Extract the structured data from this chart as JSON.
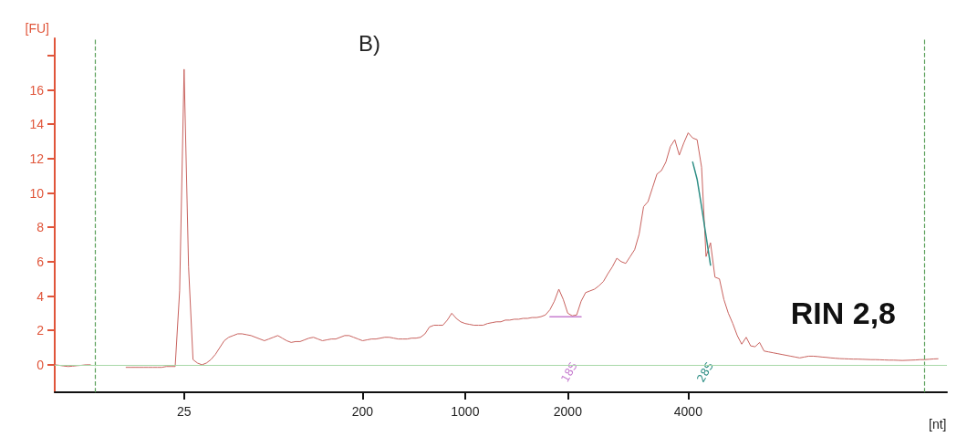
{
  "chart_data": {
    "type": "line",
    "title": "B)",
    "xlabel": "[nt]",
    "ylabel": "[FU]",
    "categories": [
      null,
      null,
      null,
      null,
      null,
      null,
      null,
      null,
      null,
      null,
      null,
      null,
      null,
      null,
      null,
      null,
      null,
      null,
      null,
      null,
      null,
      null,
      null,
      null,
      null,
      null,
      null,
      null,
      null,
      "25",
      null,
      null,
      null,
      null,
      null,
      null,
      null,
      null,
      null,
      null,
      null,
      null,
      null,
      null,
      null,
      null,
      null,
      null,
      null,
      null,
      null,
      null,
      null,
      null,
      null,
      null,
      null,
      null,
      null,
      null,
      null,
      null,
      null,
      null,
      null,
      null,
      null,
      null,
      null,
      "200",
      null,
      null,
      null,
      null,
      null,
      null,
      null,
      null,
      null,
      null,
      null,
      null,
      null,
      null,
      null,
      null,
      null,
      null,
      null,
      null,
      null,
      null,
      "1000",
      null,
      null,
      null,
      null,
      null,
      null,
      null,
      null,
      null,
      null,
      null,
      null,
      null,
      null,
      null,
      null,
      null,
      null,
      null,
      null,
      null,
      null,
      "2000",
      null,
      null,
      null,
      null,
      null,
      null,
      null,
      null,
      null,
      null,
      null,
      null,
      null,
      null,
      null,
      null,
      null,
      null,
      null,
      null,
      null,
      null,
      null,
      null,
      null,
      null,
      "4000",
      null,
      null,
      null,
      null,
      null,
      null,
      null,
      null,
      null,
      null,
      null,
      null,
      null,
      null,
      null,
      null,
      null,
      null,
      null,
      null,
      null,
      null,
      null,
      null,
      null,
      null,
      null,
      null,
      null,
      null,
      null,
      null,
      null,
      null,
      null,
      null,
      null,
      null,
      null,
      null,
      null,
      null,
      null,
      null,
      null,
      null,
      null,
      null,
      null,
      null,
      null,
      null,
      null,
      null,
      null,
      null,
      null,
      null
    ],
    "ylim": [
      -1.6,
      19
    ],
    "yticks": [
      0,
      2,
      4,
      6,
      8,
      10,
      12,
      14,
      16,
      {
        "value": 18,
        "label": null
      }
    ],
    "grid": false,
    "marker": "none",
    "line_style": "solid",
    "series": [
      {
        "color": "#c8625e",
        "values": [
          0,
          -0.03,
          -0.07,
          -0.1,
          -0.08,
          -0.05,
          -0.03,
          0,
          0,
          null,
          null,
          null,
          null,
          null,
          null,
          null,
          -0.15,
          -0.15,
          -0.15,
          -0.15,
          -0.15,
          -0.15,
          -0.15,
          -0.15,
          -0.15,
          -0.1,
          -0.1,
          -0.1,
          4.3,
          17.2,
          5.7,
          0.3,
          0.1,
          0,
          0.1,
          0.3,
          0.6,
          1.0,
          1.4,
          1.6,
          1.7,
          1.8,
          1.8,
          1.75,
          1.7,
          1.6,
          1.5,
          1.4,
          1.5,
          1.6,
          1.7,
          1.55,
          1.4,
          1.3,
          1.35,
          1.35,
          1.45,
          1.55,
          1.6,
          1.5,
          1.4,
          1.45,
          1.5,
          1.5,
          1.6,
          1.7,
          1.7,
          1.6,
          1.5,
          1.4,
          1.45,
          1.5,
          1.5,
          1.55,
          1.6,
          1.6,
          1.55,
          1.5,
          1.5,
          1.5,
          1.55,
          1.55,
          1.6,
          1.8,
          2.2,
          2.3,
          2.3,
          2.3,
          2.6,
          3.0,
          2.7,
          2.5,
          2.4,
          2.35,
          2.3,
          2.3,
          2.3,
          2.4,
          2.45,
          2.5,
          2.5,
          2.6,
          2.6,
          2.65,
          2.65,
          2.7,
          2.7,
          2.75,
          2.75,
          2.8,
          2.9,
          3.2,
          3.7,
          4.4,
          3.8,
          3.0,
          2.85,
          2.9,
          3.7,
          4.2,
          4.3,
          4.4,
          4.6,
          4.85,
          5.3,
          5.7,
          6.2,
          6.0,
          5.9,
          6.3,
          6.7,
          7.6,
          9.2,
          9.5,
          10.3,
          11.1,
          11.3,
          11.8,
          12.7,
          13.1,
          12.2,
          12.9,
          13.5,
          13.2,
          13.1,
          11.5,
          6.3,
          7.1,
          5.1,
          5.0,
          3.8,
          3.0,
          2.4,
          1.7,
          1.2,
          1.6,
          1.1,
          1.05,
          1.3,
          0.8,
          0.75,
          0.7,
          0.65,
          0.6,
          0.55,
          0.5,
          0.45,
          0.4,
          0.45,
          0.5,
          0.5,
          0.48,
          0.45,
          0.43,
          0.4,
          0.38,
          0.36,
          0.35,
          0.34,
          0.33,
          0.33,
          0.32,
          0.31,
          0.3,
          0.3,
          0.29,
          0.28,
          0.27,
          0.27,
          0.26,
          0.25,
          0.26,
          0.27,
          0.28,
          0.3,
          0.3,
          0.32,
          0.34,
          0.35,
          null,
          null
        ]
      },
      {
        "color": "#c77fd0",
        "values": [
          null,
          null,
          null,
          null,
          null,
          null,
          null,
          null,
          null,
          null,
          null,
          null,
          null,
          null,
          null,
          null,
          null,
          null,
          null,
          null,
          null,
          null,
          null,
          null,
          null,
          null,
          null,
          null,
          null,
          null,
          null,
          null,
          null,
          null,
          null,
          null,
          null,
          null,
          null,
          null,
          null,
          null,
          null,
          null,
          null,
          null,
          null,
          null,
          null,
          null,
          null,
          null,
          null,
          null,
          null,
          null,
          null,
          null,
          null,
          null,
          null,
          null,
          null,
          null,
          null,
          null,
          null,
          null,
          null,
          null,
          null,
          null,
          null,
          null,
          null,
          null,
          null,
          null,
          null,
          null,
          null,
          null,
          null,
          null,
          null,
          null,
          null,
          null,
          null,
          null,
          null,
          null,
          null,
          null,
          null,
          null,
          null,
          null,
          null,
          null,
          null,
          null,
          null,
          null,
          null,
          null,
          null,
          null,
          null,
          null,
          null,
          2.8,
          2.8,
          2.8,
          2.8,
          2.8,
          2.8,
          2.8,
          2.8,
          null,
          null,
          null,
          null,
          null,
          null,
          null,
          null,
          null,
          null,
          null,
          null,
          null,
          null,
          null,
          null,
          null,
          null,
          null,
          null,
          null,
          null,
          null,
          null,
          null,
          null,
          null,
          null,
          null,
          null,
          null,
          null,
          null,
          null,
          null,
          null,
          null,
          null,
          null,
          null,
          null,
          null,
          null,
          null,
          null,
          null,
          null,
          null,
          null,
          null,
          null,
          null,
          null,
          null,
          null,
          null,
          null,
          null,
          null,
          null,
          null,
          null,
          null,
          null,
          null,
          null,
          null,
          null,
          null,
          null,
          null,
          null,
          null,
          null,
          null,
          null,
          null,
          null,
          null,
          null,
          null,
          null
        ]
      },
      {
        "color": "#2f8f86",
        "values": [
          null,
          null,
          null,
          null,
          null,
          null,
          null,
          null,
          null,
          null,
          null,
          null,
          null,
          null,
          null,
          null,
          null,
          null,
          null,
          null,
          null,
          null,
          null,
          null,
          null,
          null,
          null,
          null,
          null,
          null,
          null,
          null,
          null,
          null,
          null,
          null,
          null,
          null,
          null,
          null,
          null,
          null,
          null,
          null,
          null,
          null,
          null,
          null,
          null,
          null,
          null,
          null,
          null,
          null,
          null,
          null,
          null,
          null,
          null,
          null,
          null,
          null,
          null,
          null,
          null,
          null,
          null,
          null,
          null,
          null,
          null,
          null,
          null,
          null,
          null,
          null,
          null,
          null,
          null,
          null,
          null,
          null,
          null,
          null,
          null,
          null,
          null,
          null,
          null,
          null,
          null,
          null,
          null,
          null,
          null,
          null,
          null,
          null,
          null,
          null,
          null,
          null,
          null,
          null,
          null,
          null,
          null,
          null,
          null,
          null,
          null,
          null,
          null,
          null,
          null,
          null,
          null,
          null,
          null,
          null,
          null,
          null,
          null,
          null,
          null,
          null,
          null,
          null,
          null,
          null,
          null,
          null,
          null,
          null,
          null,
          null,
          null,
          null,
          null,
          null,
          null,
          null,
          null,
          11.8,
          10.8,
          9.2,
          7.5,
          5.8,
          null,
          null,
          null,
          null,
          null,
          null,
          null,
          null,
          null,
          null,
          null,
          null,
          null,
          null,
          null,
          null,
          null,
          null,
          null,
          null,
          null,
          null,
          null,
          null,
          null,
          null,
          null,
          null,
          null,
          null,
          null,
          null,
          null,
          null,
          null,
          null,
          null,
          null,
          null,
          null,
          null,
          null,
          null,
          null,
          null,
          null,
          null,
          null,
          null,
          null,
          null,
          null,
          null
        ]
      }
    ],
    "ref_lines": [
      {
        "axis": "y",
        "value": 0,
        "color": "#a8d8a8",
        "line_style": "solid"
      }
    ],
    "annotations": [
      "18S",
      "28S",
      "RIN 2,8"
    ]
  }
}
